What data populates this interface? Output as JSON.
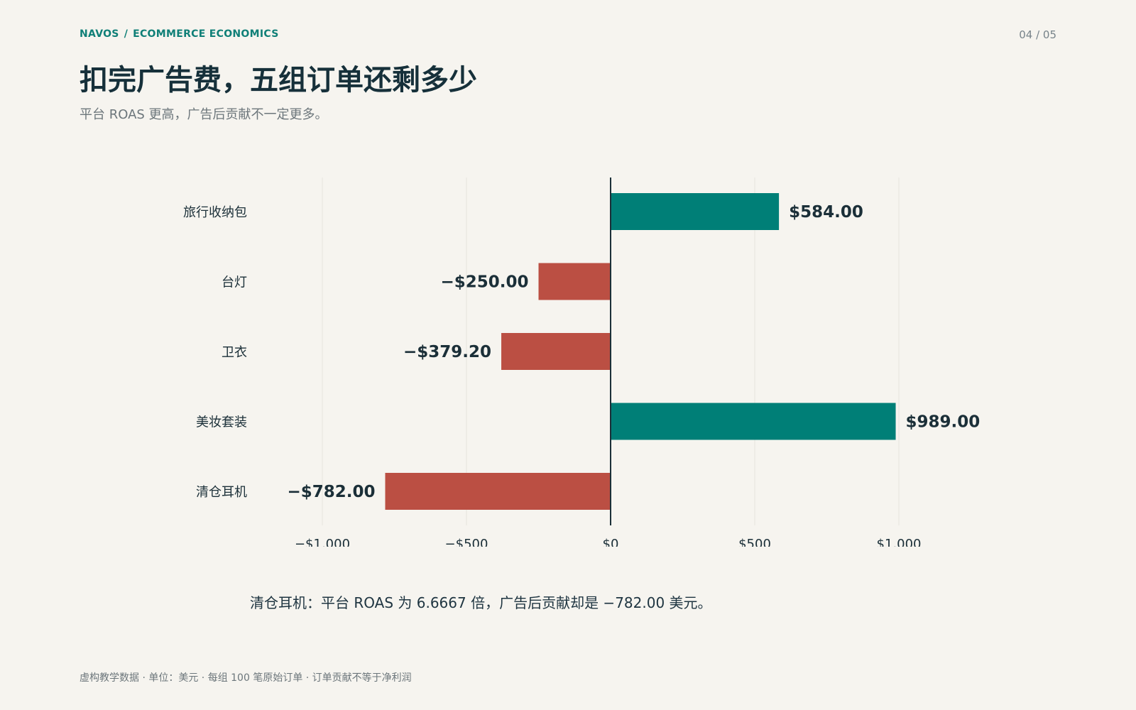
{
  "header": {
    "brand": "NAVOS",
    "separator": "/",
    "section": "ECOMMERCE ECONOMICS",
    "page_number": "04 / 05"
  },
  "title": "扣完广告费，五组订单还剩多少",
  "subtitle": "平台 ROAS 更高，广告后贡献不一定更多。",
  "chart_data": {
    "type": "bar",
    "orientation": "horizontal",
    "categories": [
      "旅行收纳包",
      "台灯",
      "卫衣",
      "美妆套装",
      "清仓耳机"
    ],
    "values": [
      584.0,
      -250.0,
      -379.2,
      989.0,
      -782.0
    ],
    "value_labels": [
      "$584.00",
      "−$250.00",
      "−$379.20",
      "$989.00",
      "−$782.00"
    ],
    "x_ticks": [
      -1000,
      -500,
      0,
      500,
      1000
    ],
    "x_tick_labels": [
      "−$1,000",
      "−$500",
      "$0",
      "$500",
      "$1,000"
    ],
    "xlim": [
      -1000,
      1000
    ],
    "grid": true,
    "colors": {
      "positive": "#007f77",
      "negative": "#bb4f43",
      "axis": "#1b2f38",
      "grid": "#e7e4dd"
    }
  },
  "annotation": "清仓耳机：平台 ROAS 为 6.6667 倍，广告后贡献却是 −782.00 美元。",
  "footer": "虚构教学数据 · 单位：美元 · 每组 100 笔原始订单 · 订单贡献不等于净利润"
}
